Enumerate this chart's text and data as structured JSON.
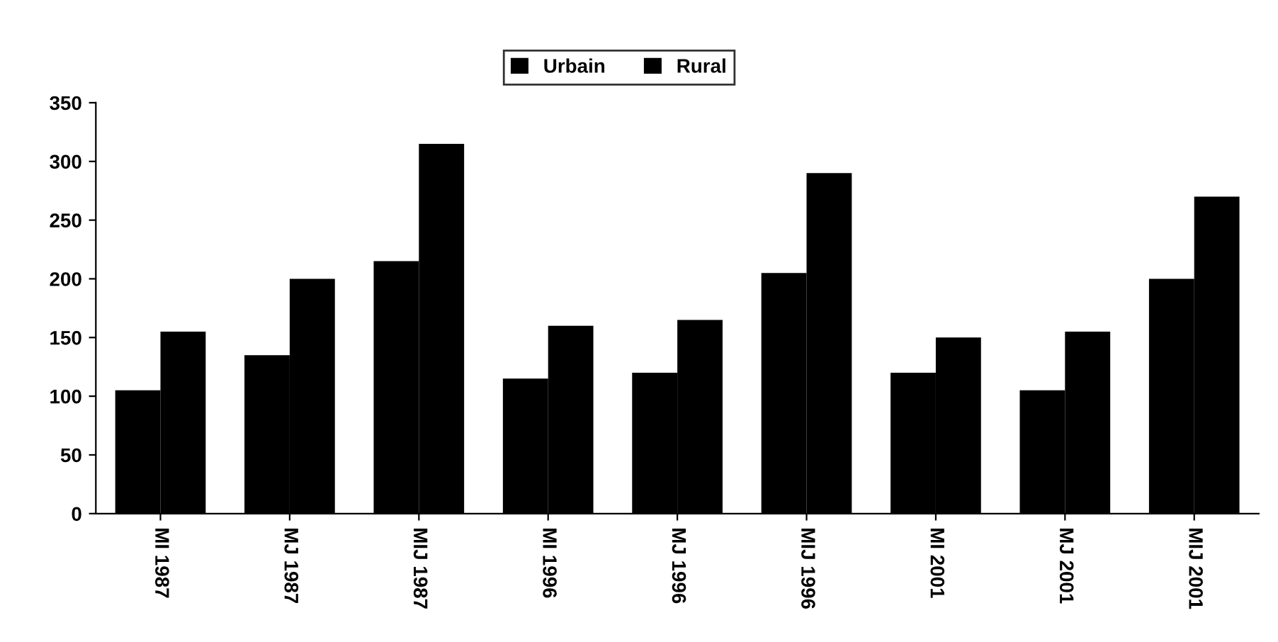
{
  "chart_data": {
    "type": "bar",
    "categories": [
      "MI 1987",
      "MJ 1987",
      "MIJ 1987",
      "MI 1996",
      "MJ 1996",
      "MIJ 1996",
      "MI 2001",
      "MJ 2001",
      "MIJ 2001"
    ],
    "series": [
      {
        "name": "Urbain",
        "color": "#000000",
        "values": [
          105,
          135,
          215,
          115,
          120,
          205,
          120,
          105,
          200
        ]
      },
      {
        "name": "Rural",
        "color": "#000000",
        "values": [
          155,
          200,
          315,
          160,
          165,
          290,
          150,
          155,
          270
        ]
      }
    ],
    "ylim": [
      0,
      350
    ],
    "yticks": [
      0,
      50,
      100,
      150,
      200,
      250,
      300,
      350
    ],
    "grid": false,
    "legend": "top"
  }
}
